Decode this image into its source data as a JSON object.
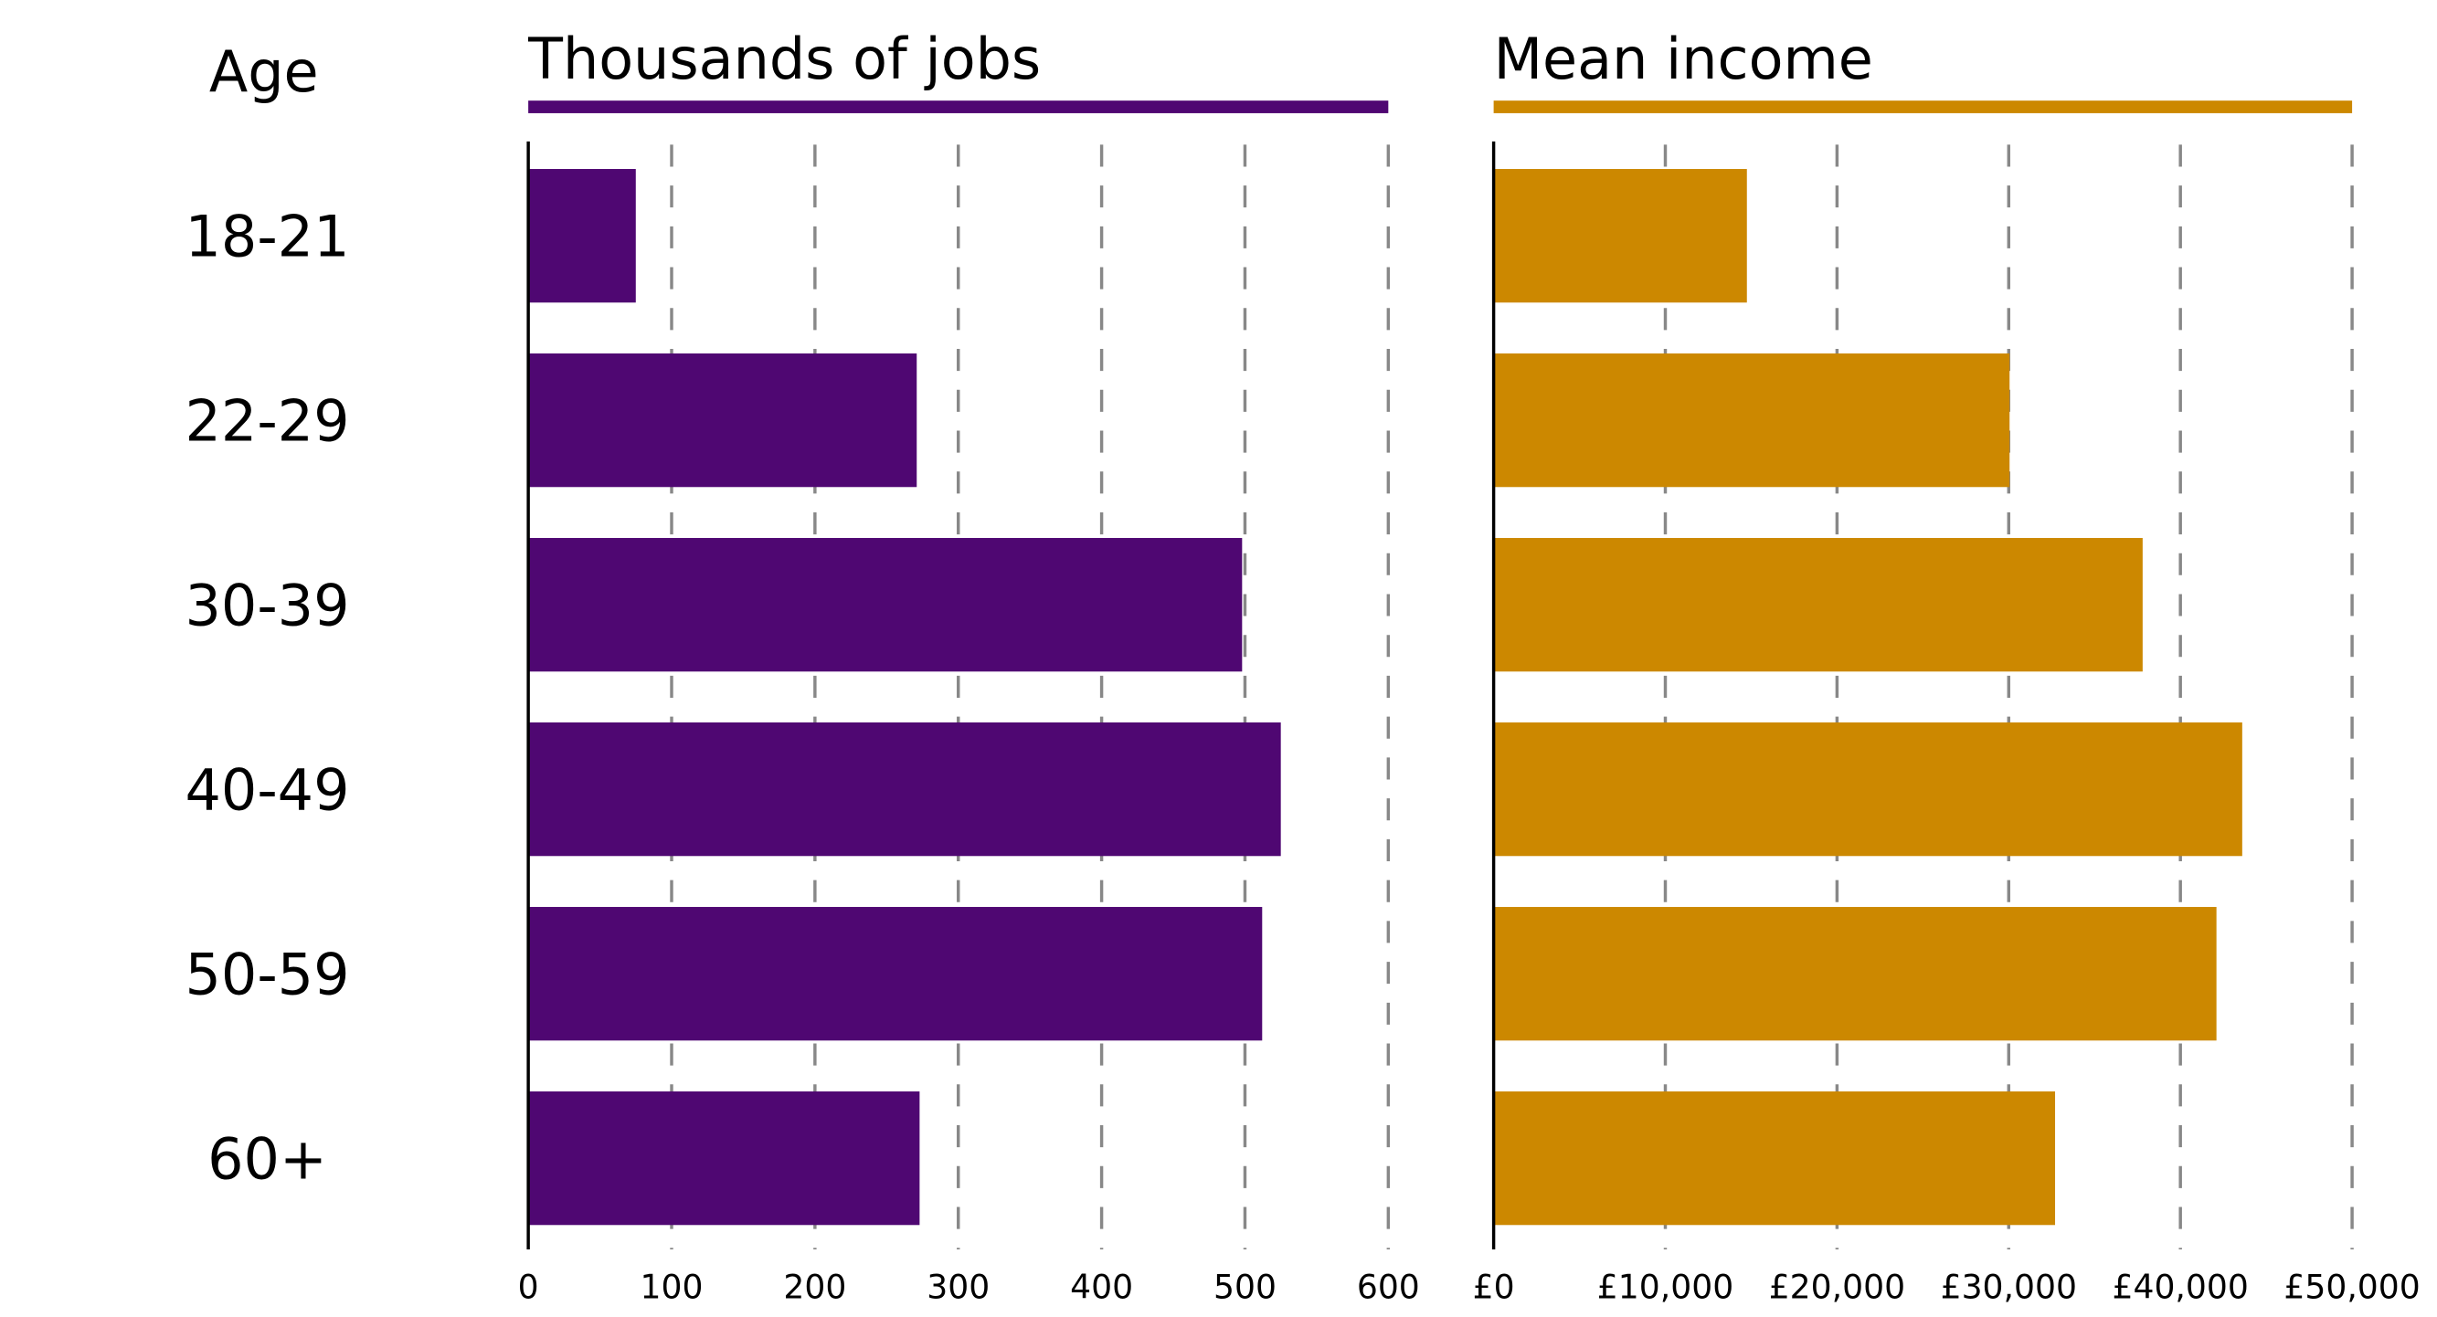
{
  "row_header": "Age",
  "colors": {
    "jobs": "#4f0772",
    "income": "#cc8800",
    "grid": "#888888"
  },
  "chart_data": [
    {
      "type": "bar",
      "orientation": "horizontal",
      "title": "Thousands of jobs",
      "categories": [
        "18-21",
        "22-29",
        "30-39",
        "40-49",
        "50-59",
        "60+"
      ],
      "values": [
        75,
        271,
        498,
        525,
        512,
        273
      ],
      "xlim": [
        0,
        600
      ],
      "ticks": [
        0,
        100,
        200,
        300,
        400,
        500,
        600
      ],
      "tick_labels": [
        "0",
        "100",
        "200",
        "300",
        "400",
        "500",
        "600"
      ],
      "grid": true,
      "grid_style": "dashed"
    },
    {
      "type": "bar",
      "orientation": "horizontal",
      "title": "Mean income",
      "categories": [
        "18-21",
        "22-29",
        "30-39",
        "40-49",
        "50-59",
        "60+"
      ],
      "values": [
        14750,
        30050,
        37800,
        43600,
        42100,
        32700
      ],
      "xlim": [
        0,
        50000
      ],
      "ticks": [
        0,
        10000,
        20000,
        30000,
        40000,
        50000
      ],
      "tick_labels": [
        "£0",
        "£10,000",
        "£20,000",
        "£30,000",
        "£40,000",
        "£50,000"
      ],
      "grid": true,
      "grid_style": "dashed"
    }
  ]
}
